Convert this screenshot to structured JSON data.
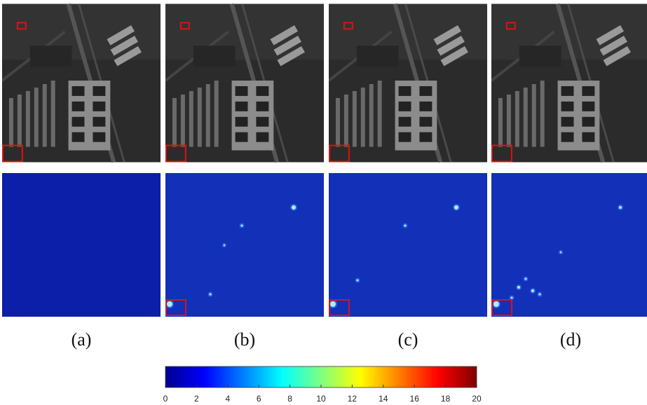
{
  "panels": [
    {
      "label": "(a)"
    },
    {
      "label": "(b)"
    },
    {
      "label": "(c)"
    },
    {
      "label": "(d)"
    }
  ],
  "colorbar": {
    "range": [
      0,
      20
    ],
    "ticks": [
      0,
      2,
      4,
      6,
      8,
      10,
      12,
      14,
      16,
      18,
      20
    ]
  }
}
